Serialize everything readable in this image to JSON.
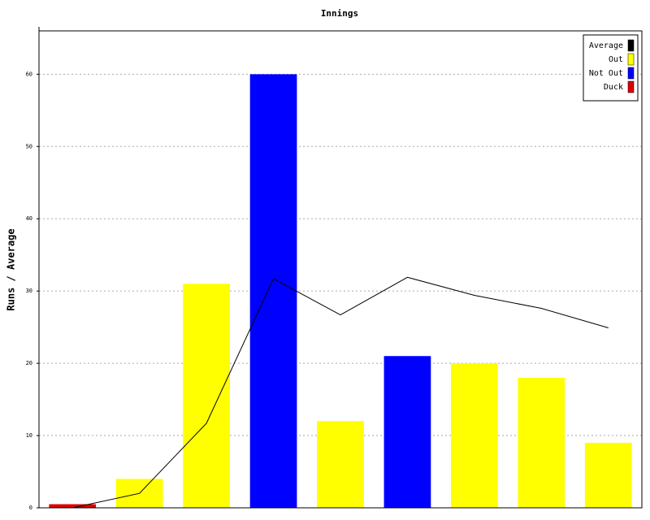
{
  "chart_data": {
    "type": "bar",
    "title": "Innings",
    "y_label": "Runs / Average",
    "categories": [
      null,
      null,
      null,
      null,
      null,
      null,
      null,
      null,
      null
    ],
    "series": [
      {
        "name": "Average",
        "type": "line",
        "color": "#000000",
        "values": [
          0,
          2,
          11.7,
          31.7,
          26.7,
          31.9,
          29.4,
          27.6,
          24.9
        ]
      },
      {
        "name": "Out",
        "type": "bar",
        "color": "#ffff00",
        "values": [
          null,
          4,
          31,
          null,
          12,
          null,
          20,
          18,
          9
        ]
      },
      {
        "name": "Not Out",
        "type": "bar",
        "color": "#0000ff",
        "values": [
          null,
          null,
          null,
          60,
          null,
          21,
          null,
          null,
          null
        ]
      },
      {
        "name": "Duck",
        "type": "bar",
        "color": "#dd0000",
        "values": [
          0.5,
          null,
          null,
          null,
          null,
          null,
          null,
          null,
          null
        ]
      }
    ],
    "ylim": [
      0,
      66
    ],
    "yticks": [
      0,
      10,
      20,
      30,
      40,
      50,
      60
    ],
    "grid": true,
    "legend": "top-right"
  }
}
